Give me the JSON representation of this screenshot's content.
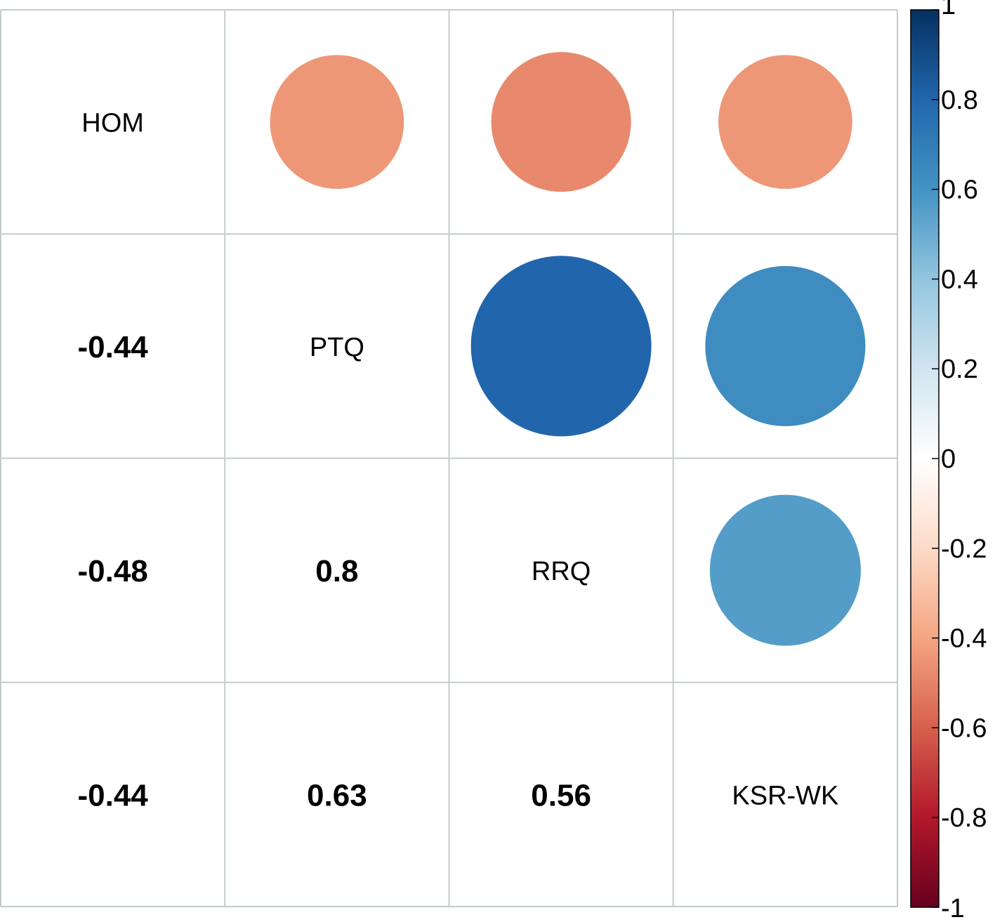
{
  "chart_data": {
    "type": "heatmap",
    "title": "",
    "xlabel": "",
    "ylabel": "",
    "variables": [
      "HOM",
      "PTQ",
      "RRQ",
      "KSR-WK"
    ],
    "matrix": [
      [
        1,
        -0.44,
        -0.48,
        -0.44
      ],
      [
        -0.44,
        1,
        0.8,
        0.63
      ],
      [
        -0.48,
        0.8,
        1,
        0.56
      ],
      [
        -0.44,
        0.63,
        0.56,
        1
      ]
    ],
    "lower_triangle_text": [
      "-0.44",
      "-0.48",
      "0.8",
      "-0.44",
      "0.63",
      "0.56"
    ],
    "upper_triangle_display": "circles",
    "diagonal_display": "variable names",
    "colorbar": {
      "range": [
        -1,
        1
      ],
      "ticks": [
        "1",
        "0.8",
        "0.6",
        "0.4",
        "0.2",
        "0",
        "-0.2",
        "-0.4",
        "-0.6",
        "-0.8",
        "-1"
      ],
      "tick_values": [
        1,
        0.8,
        0.6,
        0.4,
        0.2,
        0,
        -0.2,
        -0.4,
        -0.6,
        -0.8,
        -1
      ],
      "placement": "right",
      "colors": [
        "#67001f",
        "#b2182b",
        "#d6604d",
        "#f4a582",
        "#fddbc7",
        "#ffffff",
        "#d1e5f0",
        "#92c5de",
        "#4393c3",
        "#2166ac",
        "#053061"
      ]
    },
    "grid_color": "#c3cccc"
  }
}
